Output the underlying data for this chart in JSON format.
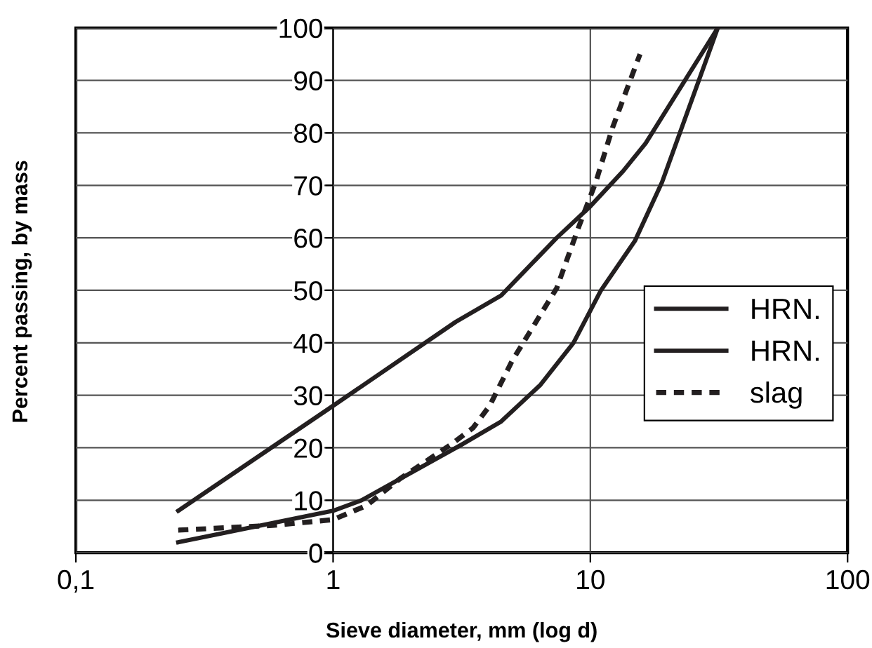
{
  "chart_data": {
    "type": "line",
    "xlabel": "Sieve diameter, mm (log d)",
    "ylabel": "Percent passing, by mass",
    "log": "x",
    "xlim": [
      0.1,
      100
    ],
    "xticks": [
      {
        "value": 0.1,
        "label": "0,1"
      },
      1,
      10,
      100
    ],
    "ylim": [
      0,
      100
    ],
    "yticks": [
      0,
      10,
      20,
      30,
      40,
      50,
      60,
      70,
      80,
      90,
      100
    ],
    "grid": true,
    "legend": "right",
    "marker": "none",
    "series": [
      {
        "name": "HRN.",
        "color": "#231f20",
        "line_style": "solid",
        "x": [
          0.25,
          1,
          3.0,
          4.5,
          7.4,
          10,
          13.4,
          16.4,
          31.3
        ],
        "values": [
          8,
          28,
          44,
          49,
          60,
          66,
          72.7,
          78,
          100
        ]
      },
      {
        "name": "HRN.",
        "color": "#231f20",
        "line_style": "solid",
        "x": [
          0.25,
          1,
          1.29,
          3.16,
          4.5,
          6.4,
          8.6,
          11,
          14.9,
          19,
          31.3
        ],
        "values": [
          2,
          8,
          10,
          20.6,
          25,
          32,
          40,
          50,
          59.4,
          70.6,
          100
        ]
      },
      {
        "name": "slag",
        "color": "#231f20",
        "line_style": "dotted",
        "x": [
          0.25,
          0.58,
          1,
          1.35,
          1.83,
          2.87,
          3.5,
          4.06,
          4.97,
          7.4,
          9.0,
          10.5,
          12.2,
          15.6
        ],
        "values": [
          4.3,
          5.2,
          6.3,
          9,
          14.2,
          20.6,
          23.8,
          28,
          36.6,
          50.4,
          62,
          70.6,
          81,
          95
        ]
      }
    ]
  }
}
